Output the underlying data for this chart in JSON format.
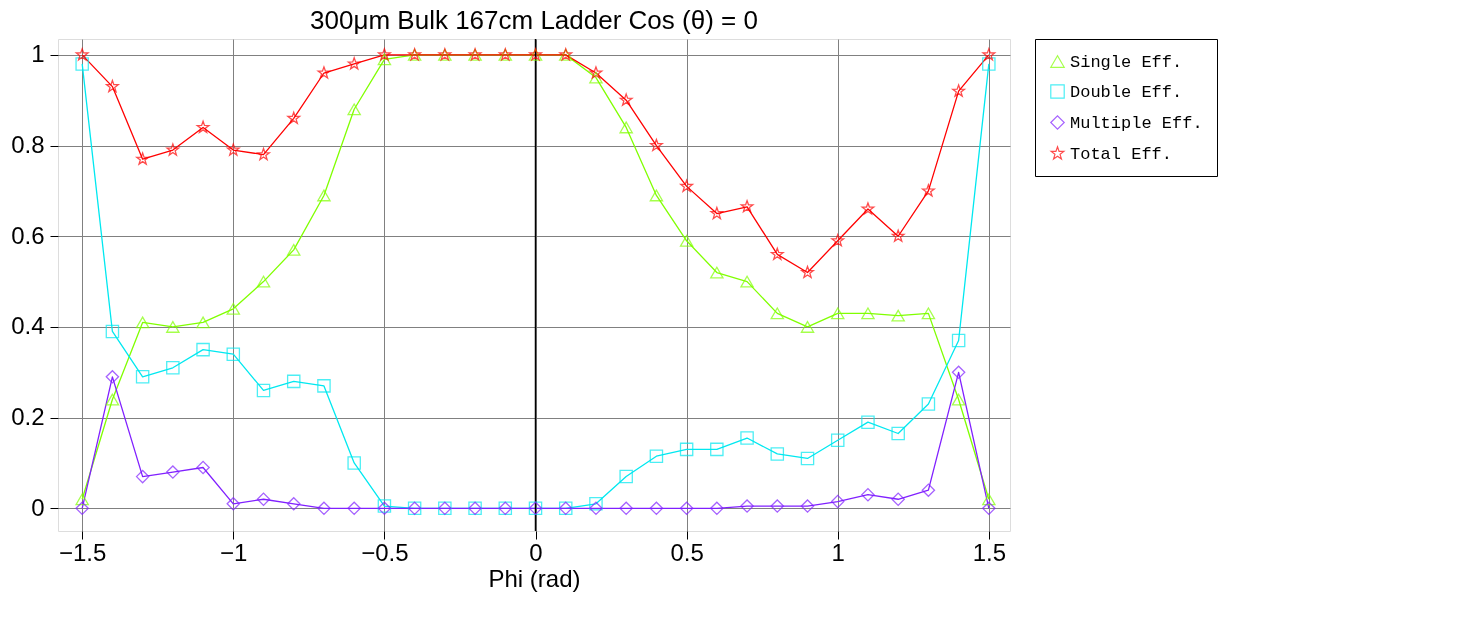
{
  "chart_data": {
    "type": "line",
    "title": "300μm Bulk   167cm Ladder   Cos (θ) = 0",
    "xlabel": "Phi (rad)",
    "x": [
      -1.5,
      -1.4,
      -1.3,
      -1.2,
      -1.1,
      -1.0,
      -0.9,
      -0.8,
      -0.7,
      -0.6,
      -0.5,
      -0.4,
      -0.3,
      -0.2,
      -0.1,
      0,
      0.1,
      0.2,
      0.3,
      0.4,
      0.5,
      0.6,
      0.7,
      0.8,
      0.9,
      1.0,
      1.1,
      1.2,
      1.3,
      1.4,
      1.5
    ],
    "series": [
      {
        "name": "Single Eff.",
        "color": "#80ff00",
        "marker": "triangle",
        "values": [
          0.02,
          0.24,
          0.41,
          0.4,
          0.41,
          0.44,
          0.5,
          0.57,
          0.69,
          0.88,
          0.99,
          1,
          1,
          1,
          1,
          1,
          1,
          0.95,
          0.84,
          0.69,
          0.59,
          0.52,
          0.5,
          0.43,
          0.4,
          0.43,
          0.43,
          0.425,
          0.43,
          0.24,
          0.02
        ]
      },
      {
        "name": "Double Eff.",
        "color": "#00e8f0",
        "marker": "square",
        "values": [
          0.98,
          0.39,
          0.29,
          0.31,
          0.35,
          0.34,
          0.26,
          0.28,
          0.27,
          0.1,
          0.005,
          0,
          0,
          0,
          0,
          0,
          0,
          0.01,
          0.07,
          0.115,
          0.13,
          0.13,
          0.155,
          0.12,
          0.11,
          0.15,
          0.19,
          0.165,
          0.23,
          0.37,
          0.98
        ]
      },
      {
        "name": "Multiple Eff.",
        "color": "#8020ff",
        "marker": "diamond",
        "values": [
          0,
          0.29,
          0.07,
          0.08,
          0.09,
          0.01,
          0.02,
          0.01,
          0,
          0,
          0,
          0,
          0,
          0,
          0,
          0,
          0,
          0,
          0,
          0,
          0,
          0,
          0.005,
          0.005,
          0.005,
          0.015,
          0.03,
          0.02,
          0.04,
          0.3,
          0
        ]
      },
      {
        "name": "Total Eff.",
        "color": "#ff0000",
        "marker": "star",
        "values": [
          1,
          0.93,
          0.77,
          0.79,
          0.84,
          0.79,
          0.78,
          0.86,
          0.96,
          0.98,
          1.0,
          1,
          1,
          1,
          1,
          1,
          1,
          0.96,
          0.9,
          0.8,
          0.71,
          0.65,
          0.665,
          0.56,
          0.52,
          0.59,
          0.66,
          0.6,
          0.7,
          0.92,
          1
        ]
      }
    ],
    "xlim": [
      -1.58,
      1.57
    ],
    "ylim": [
      -0.05,
      1.035
    ],
    "xticks": [
      {
        "value": -1.5,
        "label": "−1.5"
      },
      {
        "value": -1,
        "label": "−1"
      },
      {
        "value": -0.5,
        "label": "−0.5"
      },
      0,
      0.5,
      1,
      1.5
    ],
    "yticks": [
      0,
      0.2,
      0.4,
      0.6,
      0.8,
      1
    ],
    "ref_lines": [
      {
        "axis": "x",
        "value": 0,
        "color": "#000000"
      }
    ],
    "grid": true,
    "legend": "right",
    "line_style": "solid"
  }
}
